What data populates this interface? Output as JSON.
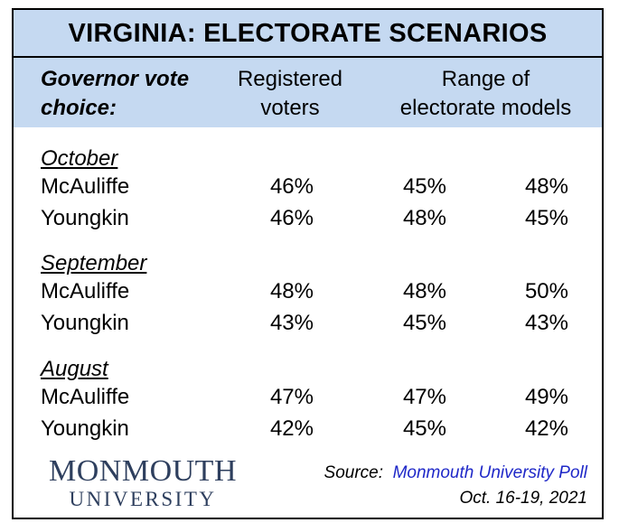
{
  "chart_data": {
    "type": "table",
    "title": "VIRGINIA: ELECTORATE SCENARIOS",
    "columns": {
      "label": [
        "Governor vote",
        "choice:"
      ],
      "registered": [
        "Registered",
        "voters"
      ],
      "range": [
        "Range of",
        "electorate models"
      ]
    },
    "groups": [
      {
        "month": "October",
        "rows": [
          {
            "candidate": "McAuliffe",
            "registered": "46%",
            "model_a": "45%",
            "model_b": "48%"
          },
          {
            "candidate": "Youngkin",
            "registered": "46%",
            "model_a": "48%",
            "model_b": "45%"
          }
        ]
      },
      {
        "month": "September",
        "rows": [
          {
            "candidate": "McAuliffe",
            "registered": "48%",
            "model_a": "48%",
            "model_b": "50%"
          },
          {
            "candidate": "Youngkin",
            "registered": "43%",
            "model_a": "45%",
            "model_b": "43%"
          }
        ]
      },
      {
        "month": "August",
        "rows": [
          {
            "candidate": "McAuliffe",
            "registered": "47%",
            "model_a": "47%",
            "model_b": "49%"
          },
          {
            "candidate": "Youngkin",
            "registered": "42%",
            "model_a": "45%",
            "model_b": "42%"
          }
        ]
      }
    ]
  },
  "footer": {
    "logo_line1": "MONMOUTH",
    "logo_line2": "UNIVERSITY",
    "source_label": "Source:",
    "source_name": "Monmouth University Poll",
    "dates": "Oct. 16-19, 2021"
  },
  "colors": {
    "header_band": "#c5d9f1",
    "source_link": "#1f28c8",
    "logo": "#2e3f5e"
  }
}
